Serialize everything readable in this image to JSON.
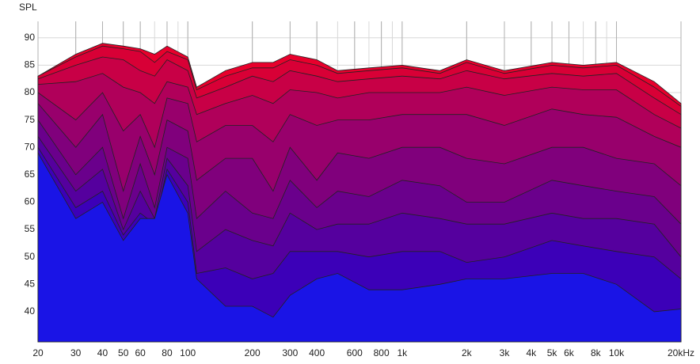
{
  "chart_data": {
    "type": "area",
    "y_label": "SPL",
    "log_x": true,
    "grid": true,
    "x": [
      20,
      30,
      40,
      50,
      60,
      70,
      80,
      100,
      110,
      150,
      200,
      250,
      300,
      400,
      500,
      700,
      1000,
      1500,
      2000,
      3000,
      5000,
      7000,
      10000,
      15000,
      20000
    ],
    "xlim": [
      20,
      20000
    ],
    "xticks": [
      20,
      30,
      40,
      50,
      60,
      80,
      100,
      200,
      300,
      400,
      600,
      800,
      {
        "value": 1000,
        "label": "1k"
      },
      {
        "value": 2000,
        "label": "2k"
      },
      {
        "value": 3000,
        "label": "3k"
      },
      {
        "value": 4000,
        "label": "4k"
      },
      {
        "value": 5000,
        "label": "5k"
      },
      {
        "value": 6000,
        "label": "6k"
      },
      {
        "value": 8000,
        "label": "8k"
      },
      {
        "value": 10000,
        "label": "10k"
      },
      {
        "value": 20000,
        "label": "20kHz"
      }
    ],
    "ylim": [
      34.5,
      93
    ],
    "yticks": [
      40,
      45,
      50,
      55,
      60,
      65,
      70,
      75,
      80,
      85,
      90
    ],
    "series": [
      {
        "color": "#e8002c",
        "values": [
          83,
          87,
          89,
          88.5,
          88,
          87,
          88.5,
          86.5,
          81,
          84,
          85.5,
          85.5,
          87,
          86,
          84,
          84.5,
          85,
          84,
          86,
          84,
          85.5,
          85,
          85.5,
          82,
          78
        ]
      },
      {
        "color": "#d80036",
        "values": [
          83,
          86.5,
          88.5,
          88,
          87.5,
          85.5,
          87.5,
          86,
          80.5,
          83,
          84.5,
          84.5,
          86,
          85,
          83.5,
          84,
          84.5,
          83.5,
          85.5,
          83.5,
          85,
          84.5,
          85,
          81,
          77.5
        ]
      },
      {
        "color": "#c80046",
        "values": [
          82.5,
          85,
          86.5,
          86,
          84,
          83,
          86,
          84,
          79,
          81,
          83,
          82,
          84,
          83,
          82,
          82.5,
          83,
          82.5,
          84,
          82.5,
          83.5,
          83,
          83.5,
          79,
          76
        ]
      },
      {
        "color": "#b0005a",
        "values": [
          81.5,
          82,
          83.5,
          81,
          80,
          78,
          82,
          81,
          76,
          78,
          79.5,
          78,
          80.5,
          80,
          79,
          80,
          80,
          80,
          81,
          79.5,
          81,
          80.5,
          80.5,
          76,
          73.5
        ]
      },
      {
        "color": "#98006c",
        "values": [
          80,
          75,
          80,
          73,
          76,
          70,
          79,
          78,
          71,
          74,
          74,
          71,
          76,
          74,
          75,
          75,
          76,
          76,
          76,
          74,
          77,
          76,
          75.5,
          72,
          70
        ]
      },
      {
        "color": "#80007c",
        "values": [
          78,
          70,
          76,
          62,
          72,
          65,
          75,
          73,
          64,
          68,
          68,
          62,
          70,
          64,
          69,
          68,
          70,
          70,
          68,
          67,
          70,
          70,
          68,
          67,
          63
        ]
      },
      {
        "color": "#6a008c",
        "values": [
          75,
          65,
          70,
          57,
          67,
          59,
          70,
          68,
          57,
          62,
          58,
          57,
          64,
          59,
          62,
          61,
          64,
          63,
          60,
          60,
          64,
          63,
          62,
          61,
          56
        ]
      },
      {
        "color": "#55009e",
        "values": [
          72,
          62,
          66,
          55,
          62,
          57,
          68,
          63,
          51,
          55,
          53,
          52,
          58,
          55,
          56,
          56,
          58,
          57,
          56,
          56,
          58,
          57,
          57,
          56,
          50
        ]
      },
      {
        "color": "#3c00b8",
        "values": [
          70,
          59,
          62,
          54,
          58,
          56,
          66,
          60,
          47,
          48,
          46,
          47,
          51,
          51,
          51,
          50,
          51,
          51,
          49,
          50,
          53,
          52,
          51,
          50,
          46
        ]
      },
      {
        "color": "#1a14e6",
        "values": [
          69,
          57,
          60,
          53,
          57,
          57,
          65,
          58,
          46,
          41,
          41,
          39,
          43,
          46,
          47,
          44,
          44,
          45,
          46,
          46,
          47,
          47,
          45,
          40,
          40.5
        ]
      }
    ]
  }
}
